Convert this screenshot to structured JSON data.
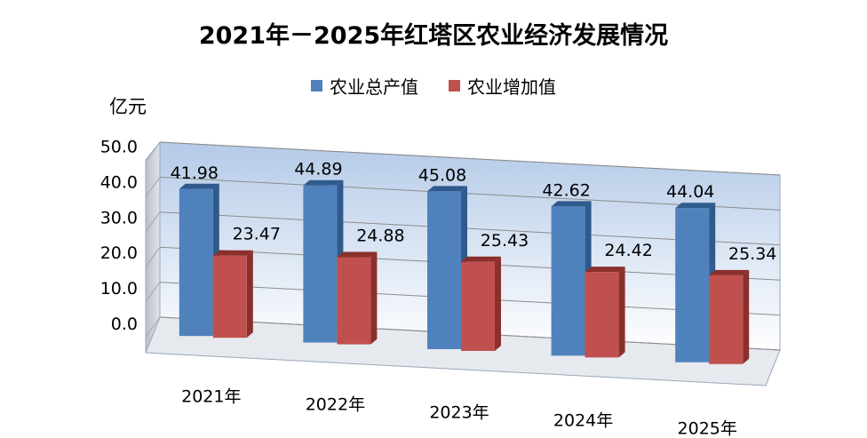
{
  "chart_data": {
    "type": "bar",
    "title": "2021年－2025年红塔区农业经济发展情况",
    "ylabel": "亿元",
    "xlabel": "",
    "categories": [
      "2021年",
      "2022年",
      "2023年",
      "2024年",
      "2025年"
    ],
    "series": [
      {
        "name": "农业总产值",
        "values": [
          41.98,
          44.89,
          45.08,
          42.62,
          44.04
        ],
        "color": "#4F81BD"
      },
      {
        "name": "农业增加值",
        "values": [
          23.47,
          24.88,
          25.43,
          24.42,
          25.34
        ],
        "color": "#C0504D"
      }
    ],
    "ylim": [
      0,
      50
    ],
    "yticks": [
      "0.0",
      "10.0",
      "20.0",
      "30.0",
      "40.0",
      "50.0"
    ],
    "grid": true,
    "legend_position": "top-center"
  }
}
